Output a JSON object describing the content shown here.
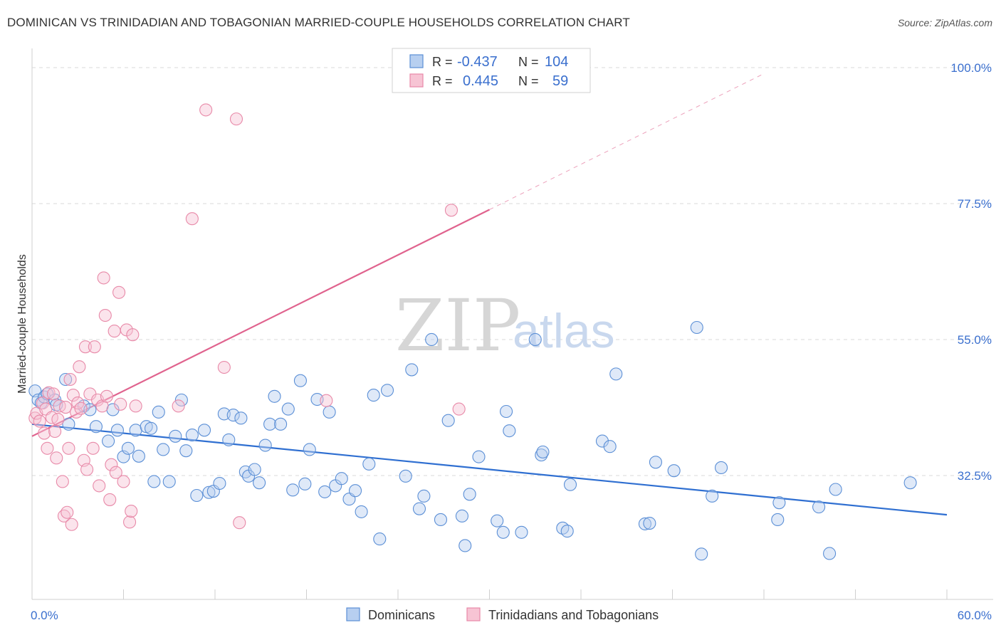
{
  "title": "DOMINICAN VS TRINIDADIAN AND TOBAGONIAN MARRIED-COUPLE HOUSEHOLDS CORRELATION CHART",
  "source": "Source: ZipAtlas.com",
  "watermark": {
    "zip": "ZIP",
    "atlas": "atlas"
  },
  "colors": {
    "blue": "#5b8fd6",
    "blue_fill": "#b7cff0",
    "blue_line": "#2f6fd1",
    "pink": "#e889a8",
    "pink_fill": "#f7c4d4",
    "pink_line": "#e0638e",
    "grid": "#d9d9d9",
    "label": "#3a6fce"
  },
  "legend": {
    "r_label": "R =",
    "n_label": "N =",
    "rows": [
      {
        "r": "-0.437",
        "n": "104",
        "color": "blue"
      },
      {
        "r": "0.445",
        "n": "59",
        "color": "pink"
      }
    ]
  },
  "chart_data": {
    "type": "scatter",
    "title": "DOMINICAN VS TRINIDADIAN AND TOBAGONIAN MARRIED-COUPLE HOUSEHOLDS CORRELATION CHART",
    "xlabel": "",
    "ylabel": "Married-couple Households",
    "xlim": [
      0,
      60
    ],
    "ylim": [
      12,
      102
    ],
    "x_tick_labels": [
      "0.0%",
      "60.0%"
    ],
    "y_ticks": [
      32.5,
      55.0,
      77.5,
      100.0
    ],
    "y_tick_labels": [
      "32.5%",
      "55.0%",
      "77.5%",
      "100.0%"
    ],
    "grid": true,
    "legend_position": "top-center",
    "series": [
      {
        "name": "Dominicans",
        "color": "blue",
        "trend": {
          "x": [
            0,
            60
          ],
          "y": [
            41.0,
            26.0
          ]
        },
        "points": [
          [
            0.2,
            46.5
          ],
          [
            0.4,
            45.0
          ],
          [
            0.6,
            44.5
          ],
          [
            0.8,
            45.5
          ],
          [
            1.0,
            46.0
          ],
          [
            1.5,
            45.0
          ],
          [
            1.6,
            44.2
          ],
          [
            2.2,
            48.4
          ],
          [
            2.4,
            41.0
          ],
          [
            3.4,
            44.0
          ],
          [
            3.8,
            43.4
          ],
          [
            4.2,
            40.6
          ],
          [
            5.0,
            38.2
          ],
          [
            5.3,
            43.4
          ],
          [
            5.6,
            40.0
          ],
          [
            6.0,
            35.6
          ],
          [
            6.3,
            37.0
          ],
          [
            6.8,
            40.0
          ],
          [
            7.0,
            35.7
          ],
          [
            7.5,
            40.6
          ],
          [
            7.8,
            40.3
          ],
          [
            8.0,
            31.5
          ],
          [
            8.3,
            43.0
          ],
          [
            8.6,
            36.8
          ],
          [
            9.0,
            31.5
          ],
          [
            9.4,
            39.0
          ],
          [
            9.8,
            45.0
          ],
          [
            10.1,
            36.6
          ],
          [
            10.5,
            39.2
          ],
          [
            10.8,
            29.2
          ],
          [
            11.3,
            40.0
          ],
          [
            11.6,
            29.7
          ],
          [
            11.9,
            29.9
          ],
          [
            12.3,
            31.2
          ],
          [
            12.6,
            42.7
          ],
          [
            12.9,
            38.4
          ],
          [
            13.2,
            42.5
          ],
          [
            13.7,
            42.0
          ],
          [
            14.0,
            33.1
          ],
          [
            14.2,
            32.4
          ],
          [
            14.6,
            33.5
          ],
          [
            14.9,
            31.3
          ],
          [
            15.3,
            37.5
          ],
          [
            15.6,
            41.0
          ],
          [
            15.9,
            45.6
          ],
          [
            16.3,
            41.0
          ],
          [
            16.8,
            43.5
          ],
          [
            17.1,
            30.1
          ],
          [
            17.6,
            48.2
          ],
          [
            17.9,
            31.1
          ],
          [
            18.2,
            36.8
          ],
          [
            18.7,
            45.1
          ],
          [
            19.2,
            29.8
          ],
          [
            19.5,
            43.0
          ],
          [
            19.9,
            30.8
          ],
          [
            20.3,
            32.0
          ],
          [
            20.8,
            28.6
          ],
          [
            21.2,
            30.0
          ],
          [
            21.6,
            26.5
          ],
          [
            22.1,
            34.4
          ],
          [
            22.4,
            45.8
          ],
          [
            22.8,
            22.0
          ],
          [
            23.3,
            46.6
          ],
          [
            24.5,
            32.4
          ],
          [
            24.9,
            50.0
          ],
          [
            25.4,
            27.0
          ],
          [
            25.7,
            29.1
          ],
          [
            26.2,
            55.0
          ],
          [
            26.8,
            25.2
          ],
          [
            27.3,
            41.6
          ],
          [
            28.2,
            25.8
          ],
          [
            28.4,
            20.9
          ],
          [
            28.7,
            29.4
          ],
          [
            29.3,
            35.6
          ],
          [
            30.5,
            25.0
          ],
          [
            30.9,
            23.1
          ],
          [
            31.1,
            43.1
          ],
          [
            31.3,
            39.9
          ],
          [
            32.1,
            23.1
          ],
          [
            33.0,
            55.0
          ],
          [
            33.4,
            35.9
          ],
          [
            33.5,
            36.4
          ],
          [
            34.8,
            23.8
          ],
          [
            35.1,
            23.3
          ],
          [
            35.3,
            31.0
          ],
          [
            37.4,
            38.2
          ],
          [
            37.9,
            37.3
          ],
          [
            38.3,
            49.3
          ],
          [
            40.2,
            24.5
          ],
          [
            40.5,
            24.6
          ],
          [
            40.9,
            34.7
          ],
          [
            42.1,
            33.3
          ],
          [
            43.6,
            57.0
          ],
          [
            43.9,
            19.5
          ],
          [
            44.6,
            29.1
          ],
          [
            45.2,
            33.8
          ],
          [
            48.9,
            25.2
          ],
          [
            49.0,
            28.0
          ],
          [
            51.6,
            27.3
          ],
          [
            52.3,
            19.6
          ],
          [
            52.7,
            30.2
          ],
          [
            57.6,
            31.3
          ]
        ]
      },
      {
        "name": "Trinidadians and Tobagonians",
        "color": "pink",
        "trend": {
          "x": [
            0,
            30
          ],
          "y": [
            39.0,
            76.5
          ]
        },
        "trend_dashed": {
          "x": [
            30,
            48
          ],
          "y": [
            76.5,
            99.0
          ]
        },
        "points": [
          [
            0.2,
            42.0
          ],
          [
            0.3,
            42.8
          ],
          [
            0.5,
            41.5
          ],
          [
            0.7,
            44.5
          ],
          [
            0.8,
            39.5
          ],
          [
            0.9,
            43.5
          ],
          [
            1.0,
            37.0
          ],
          [
            1.1,
            46.2
          ],
          [
            1.3,
            42.1
          ],
          [
            1.4,
            46.0
          ],
          [
            1.5,
            39.8
          ],
          [
            1.6,
            35.4
          ],
          [
            1.7,
            41.8
          ],
          [
            1.8,
            44.0
          ],
          [
            2.0,
            31.5
          ],
          [
            2.1,
            25.8
          ],
          [
            2.2,
            43.8
          ],
          [
            2.3,
            26.4
          ],
          [
            2.4,
            37.0
          ],
          [
            2.5,
            48.4
          ],
          [
            2.6,
            24.4
          ],
          [
            2.7,
            45.8
          ],
          [
            2.9,
            43.0
          ],
          [
            3.0,
            44.5
          ],
          [
            3.1,
            50.5
          ],
          [
            3.2,
            43.6
          ],
          [
            3.4,
            35.0
          ],
          [
            3.5,
            53.8
          ],
          [
            3.6,
            33.5
          ],
          [
            3.8,
            46.0
          ],
          [
            4.0,
            37.0
          ],
          [
            4.1,
            53.8
          ],
          [
            4.3,
            45.0
          ],
          [
            4.4,
            30.8
          ],
          [
            4.6,
            44.0
          ],
          [
            4.7,
            65.2
          ],
          [
            4.8,
            59.0
          ],
          [
            4.9,
            45.6
          ],
          [
            5.1,
            28.5
          ],
          [
            5.2,
            34.3
          ],
          [
            5.4,
            56.4
          ],
          [
            5.5,
            33.0
          ],
          [
            5.7,
            62.8
          ],
          [
            5.8,
            44.3
          ],
          [
            6.0,
            31.5
          ],
          [
            6.2,
            56.6
          ],
          [
            6.4,
            24.8
          ],
          [
            6.5,
            26.6
          ],
          [
            6.6,
            55.8
          ],
          [
            6.8,
            44.0
          ],
          [
            9.6,
            44.0
          ],
          [
            10.5,
            75.0
          ],
          [
            11.4,
            93.0
          ],
          [
            12.6,
            50.4
          ],
          [
            13.4,
            91.5
          ],
          [
            13.6,
            24.7
          ],
          [
            19.3,
            44.9
          ],
          [
            27.5,
            76.4
          ],
          [
            28.0,
            43.5
          ]
        ]
      }
    ]
  },
  "bottom_legend": [
    {
      "label": "Dominicans",
      "color": "blue"
    },
    {
      "label": "Trinidadians and Tobagonians",
      "color": "pink"
    }
  ]
}
